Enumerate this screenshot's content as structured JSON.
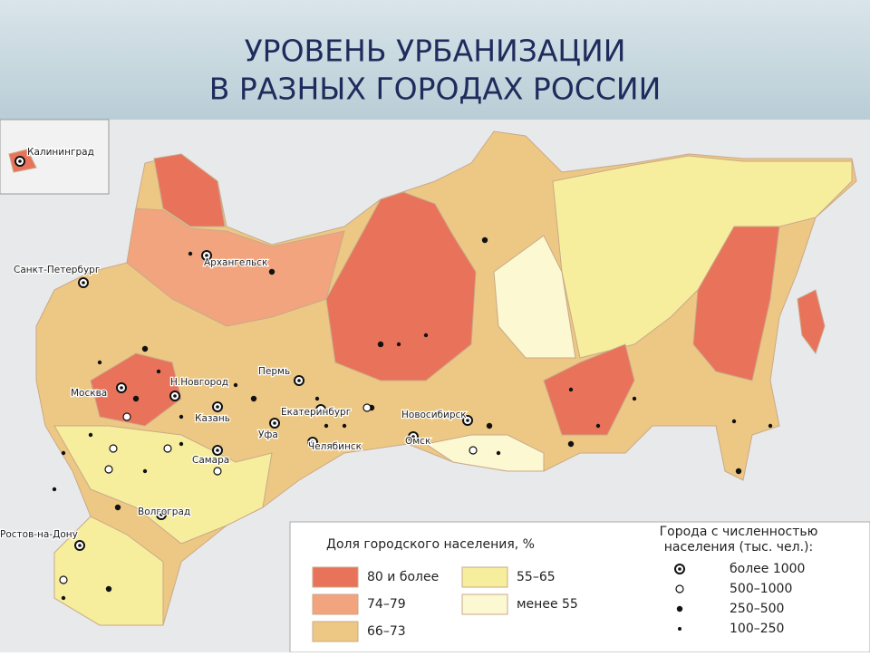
{
  "header": {
    "title": [
      "УРОВЕНЬ УРБАНИЗАЦИИ",
      "В РАЗНЫХ ГОРОДАХ РОССИИ"
    ]
  },
  "map": {
    "cities": [
      "Калининград",
      "Санкт-Петербург",
      "Архангельск",
      "Москва",
      "Н.Новгород",
      "Пермь",
      "Казань",
      "Екатеринбург",
      "Уфа",
      "Челябинск",
      "Самара",
      "Новосибирск",
      "Омск",
      "Волгоград",
      "Ростов-на-Дону"
    ]
  },
  "legend": {
    "share": {
      "title": "Доля городского населения, %",
      "items": [
        {
          "label": "80 и более",
          "color": "#e8735a"
        },
        {
          "label": "74–79",
          "color": "#f1a47e"
        },
        {
          "label": "66–73",
          "color": "#edc884"
        },
        {
          "label": "55–65",
          "color": "#f6ee9c"
        },
        {
          "label": "менее 55",
          "color": "#fbf8d2"
        }
      ]
    },
    "cities": {
      "title": [
        "Города с численностью",
        "населения (тыс. чел.):"
      ],
      "items": [
        "более 1000",
        "500–1000",
        "250–500",
        "100–250"
      ]
    }
  }
}
